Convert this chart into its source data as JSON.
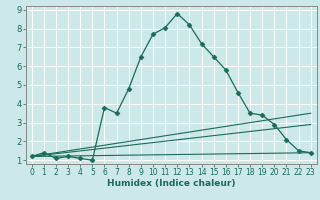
{
  "xlabel": "Humidex (Indice chaleur)",
  "bg_color": "#cce8e8",
  "grid_color": "#ffffff",
  "line_color": "#1a6b5a",
  "spine_color": "#888888",
  "xlim": [
    -0.5,
    23.5
  ],
  "ylim": [
    0.8,
    9.2
  ],
  "xticks": [
    0,
    1,
    2,
    3,
    4,
    5,
    6,
    7,
    8,
    9,
    10,
    11,
    12,
    13,
    14,
    15,
    16,
    17,
    18,
    19,
    20,
    21,
    22,
    23
  ],
  "yticks": [
    1,
    2,
    3,
    4,
    5,
    6,
    7,
    8,
    9
  ],
  "series": [
    {
      "x": [
        0,
        1,
        2,
        3,
        4,
        5,
        6,
        7,
        8,
        9,
        10,
        11,
        12,
        13,
        14,
        15,
        16,
        17,
        18,
        19,
        20,
        21,
        22,
        23
      ],
      "y": [
        1.2,
        1.4,
        1.1,
        1.2,
        1.1,
        1.0,
        3.8,
        3.5,
        4.8,
        6.5,
        7.7,
        8.05,
        8.8,
        8.2,
        7.2,
        6.5,
        5.8,
        4.6,
        3.5,
        3.4,
        2.9,
        2.1,
        1.5,
        1.4
      ],
      "marker": "D",
      "markersize": 2.5,
      "linewidth": 0.9
    },
    {
      "x": [
        0,
        23
      ],
      "y": [
        1.2,
        1.4
      ],
      "marker": null,
      "markersize": 0,
      "linewidth": 0.8
    },
    {
      "x": [
        0,
        23
      ],
      "y": [
        1.2,
        3.5
      ],
      "marker": null,
      "markersize": 0,
      "linewidth": 0.8
    },
    {
      "x": [
        0,
        23
      ],
      "y": [
        1.2,
        2.9
      ],
      "marker": null,
      "markersize": 0,
      "linewidth": 0.8
    }
  ]
}
